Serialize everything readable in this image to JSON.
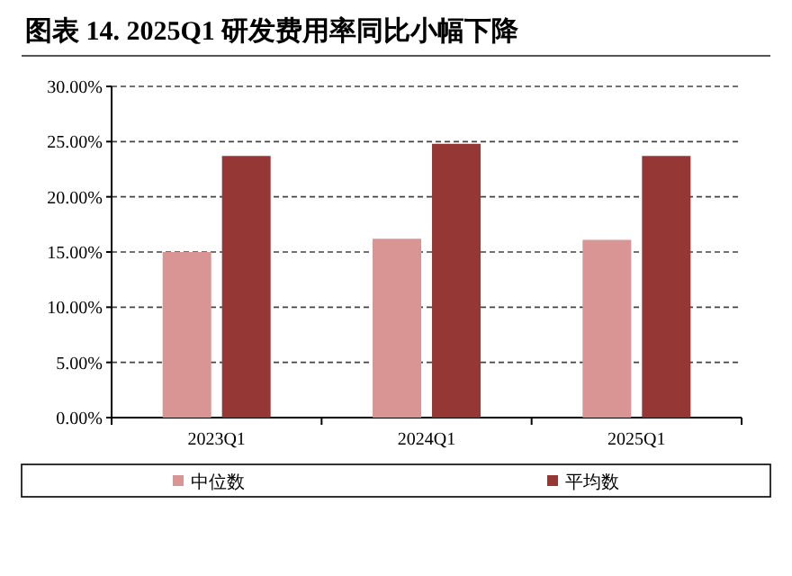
{
  "chart_data": {
    "type": "bar",
    "title": "图表 14. 2025Q1 研发费用率同比小幅下降",
    "categories": [
      "2023Q1",
      "2024Q1",
      "2025Q1"
    ],
    "series": [
      {
        "name": "中位数",
        "color": "#d99594",
        "values": [
          15.0,
          16.2,
          16.1
        ]
      },
      {
        "name": "平均数",
        "color": "#953735",
        "values": [
          23.7,
          24.8,
          23.7
        ]
      }
    ],
    "ylim": [
      0,
      30
    ],
    "yticks": [
      {
        "value": 0,
        "label": "0.00%"
      },
      {
        "value": 5,
        "label": "5.00%"
      },
      {
        "value": 10,
        "label": "10.00%"
      },
      {
        "value": 15,
        "label": "15.00%"
      },
      {
        "value": 20,
        "label": "20.00%"
      },
      {
        "value": 25,
        "label": "25.00%"
      },
      {
        "value": 30,
        "label": "30.00%"
      }
    ],
    "grid": "y",
    "legend": "bottom"
  }
}
